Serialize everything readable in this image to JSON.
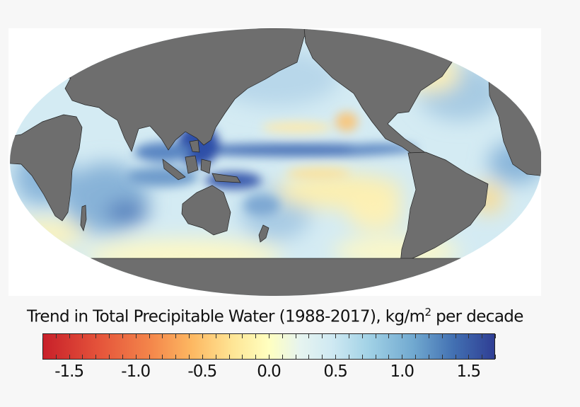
{
  "chart_data": {
    "type": "heatmap",
    "projection": "mollweide",
    "center_longitude": 150,
    "title": "Trend in Total Precipitable Water (1988-2017),  kg/m",
    "title_superscript": "2",
    "title_suffix": " per decade",
    "colorbar": {
      "range": [
        -1.7,
        1.7
      ],
      "tick_values": [
        -1.5,
        -1.0,
        -0.5,
        0.0,
        0.5,
        1.0,
        1.5
      ],
      "tick_labels": [
        "-1.5",
        "-1.0",
        "-0.5",
        "0.0",
        "0.5",
        "1.0",
        "1.5"
      ],
      "minor_tick_step": 0.1,
      "colormap": "red-yellow-blue diverging",
      "colors": [
        "#c8202a",
        "#f4874b",
        "#fee595",
        "#ffffc0",
        "#cfe9f2",
        "#71a9d0",
        "#2f3e94"
      ]
    },
    "land_color": "#6e6e6e",
    "background_color": "#f7f7f7"
  }
}
